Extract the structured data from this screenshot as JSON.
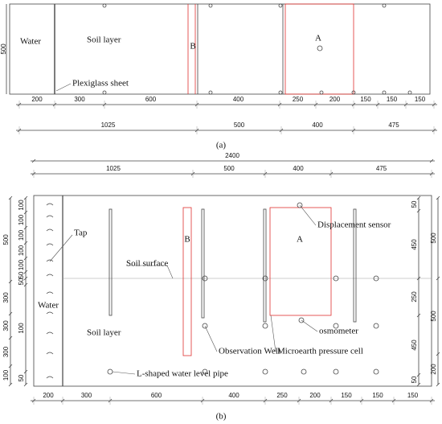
{
  "panel_a": {
    "labels": {
      "water": "Water",
      "soil_layer": "Soil layer",
      "b": "B",
      "a": "A",
      "plexiglass": "Plexiglass sheet"
    },
    "height_dim": 500,
    "dims_row1": [
      200,
      300,
      600,
      400,
      250,
      200,
      150,
      150,
      150
    ],
    "dims_row2": [
      1025,
      500,
      400,
      475
    ],
    "caption": "(a)"
  },
  "panel_b": {
    "total_dim": 2400,
    "dims_top": [
      1025,
      500,
      400,
      475
    ],
    "dims_bottom": [
      200,
      300,
      600,
      400,
      250,
      200,
      150,
      150,
      150
    ],
    "left_dims_outer": [
      500,
      300,
      300,
      300,
      100
    ],
    "left_dims_inner": [
      100,
      100,
      100,
      100,
      100,
      50,
      50,
      100,
      50
    ],
    "right_dims_inner": [
      50,
      450,
      250,
      450,
      50
    ],
    "right_dims_outer": [
      500,
      500,
      200
    ],
    "labels": {
      "tap": "Tap",
      "soil_surface": "Soil surface",
      "water": "Water",
      "soil_layer": "Soil layer",
      "b": "B",
      "a": "A",
      "displacement_sensor": "Displacement sensor",
      "osmometer": "osmometer",
      "observation_well": "Observation Well",
      "pressure_cell": "Microearth pressure cell",
      "water_level_pipe": "L-shaped water level pipe"
    },
    "caption": "(b)"
  }
}
